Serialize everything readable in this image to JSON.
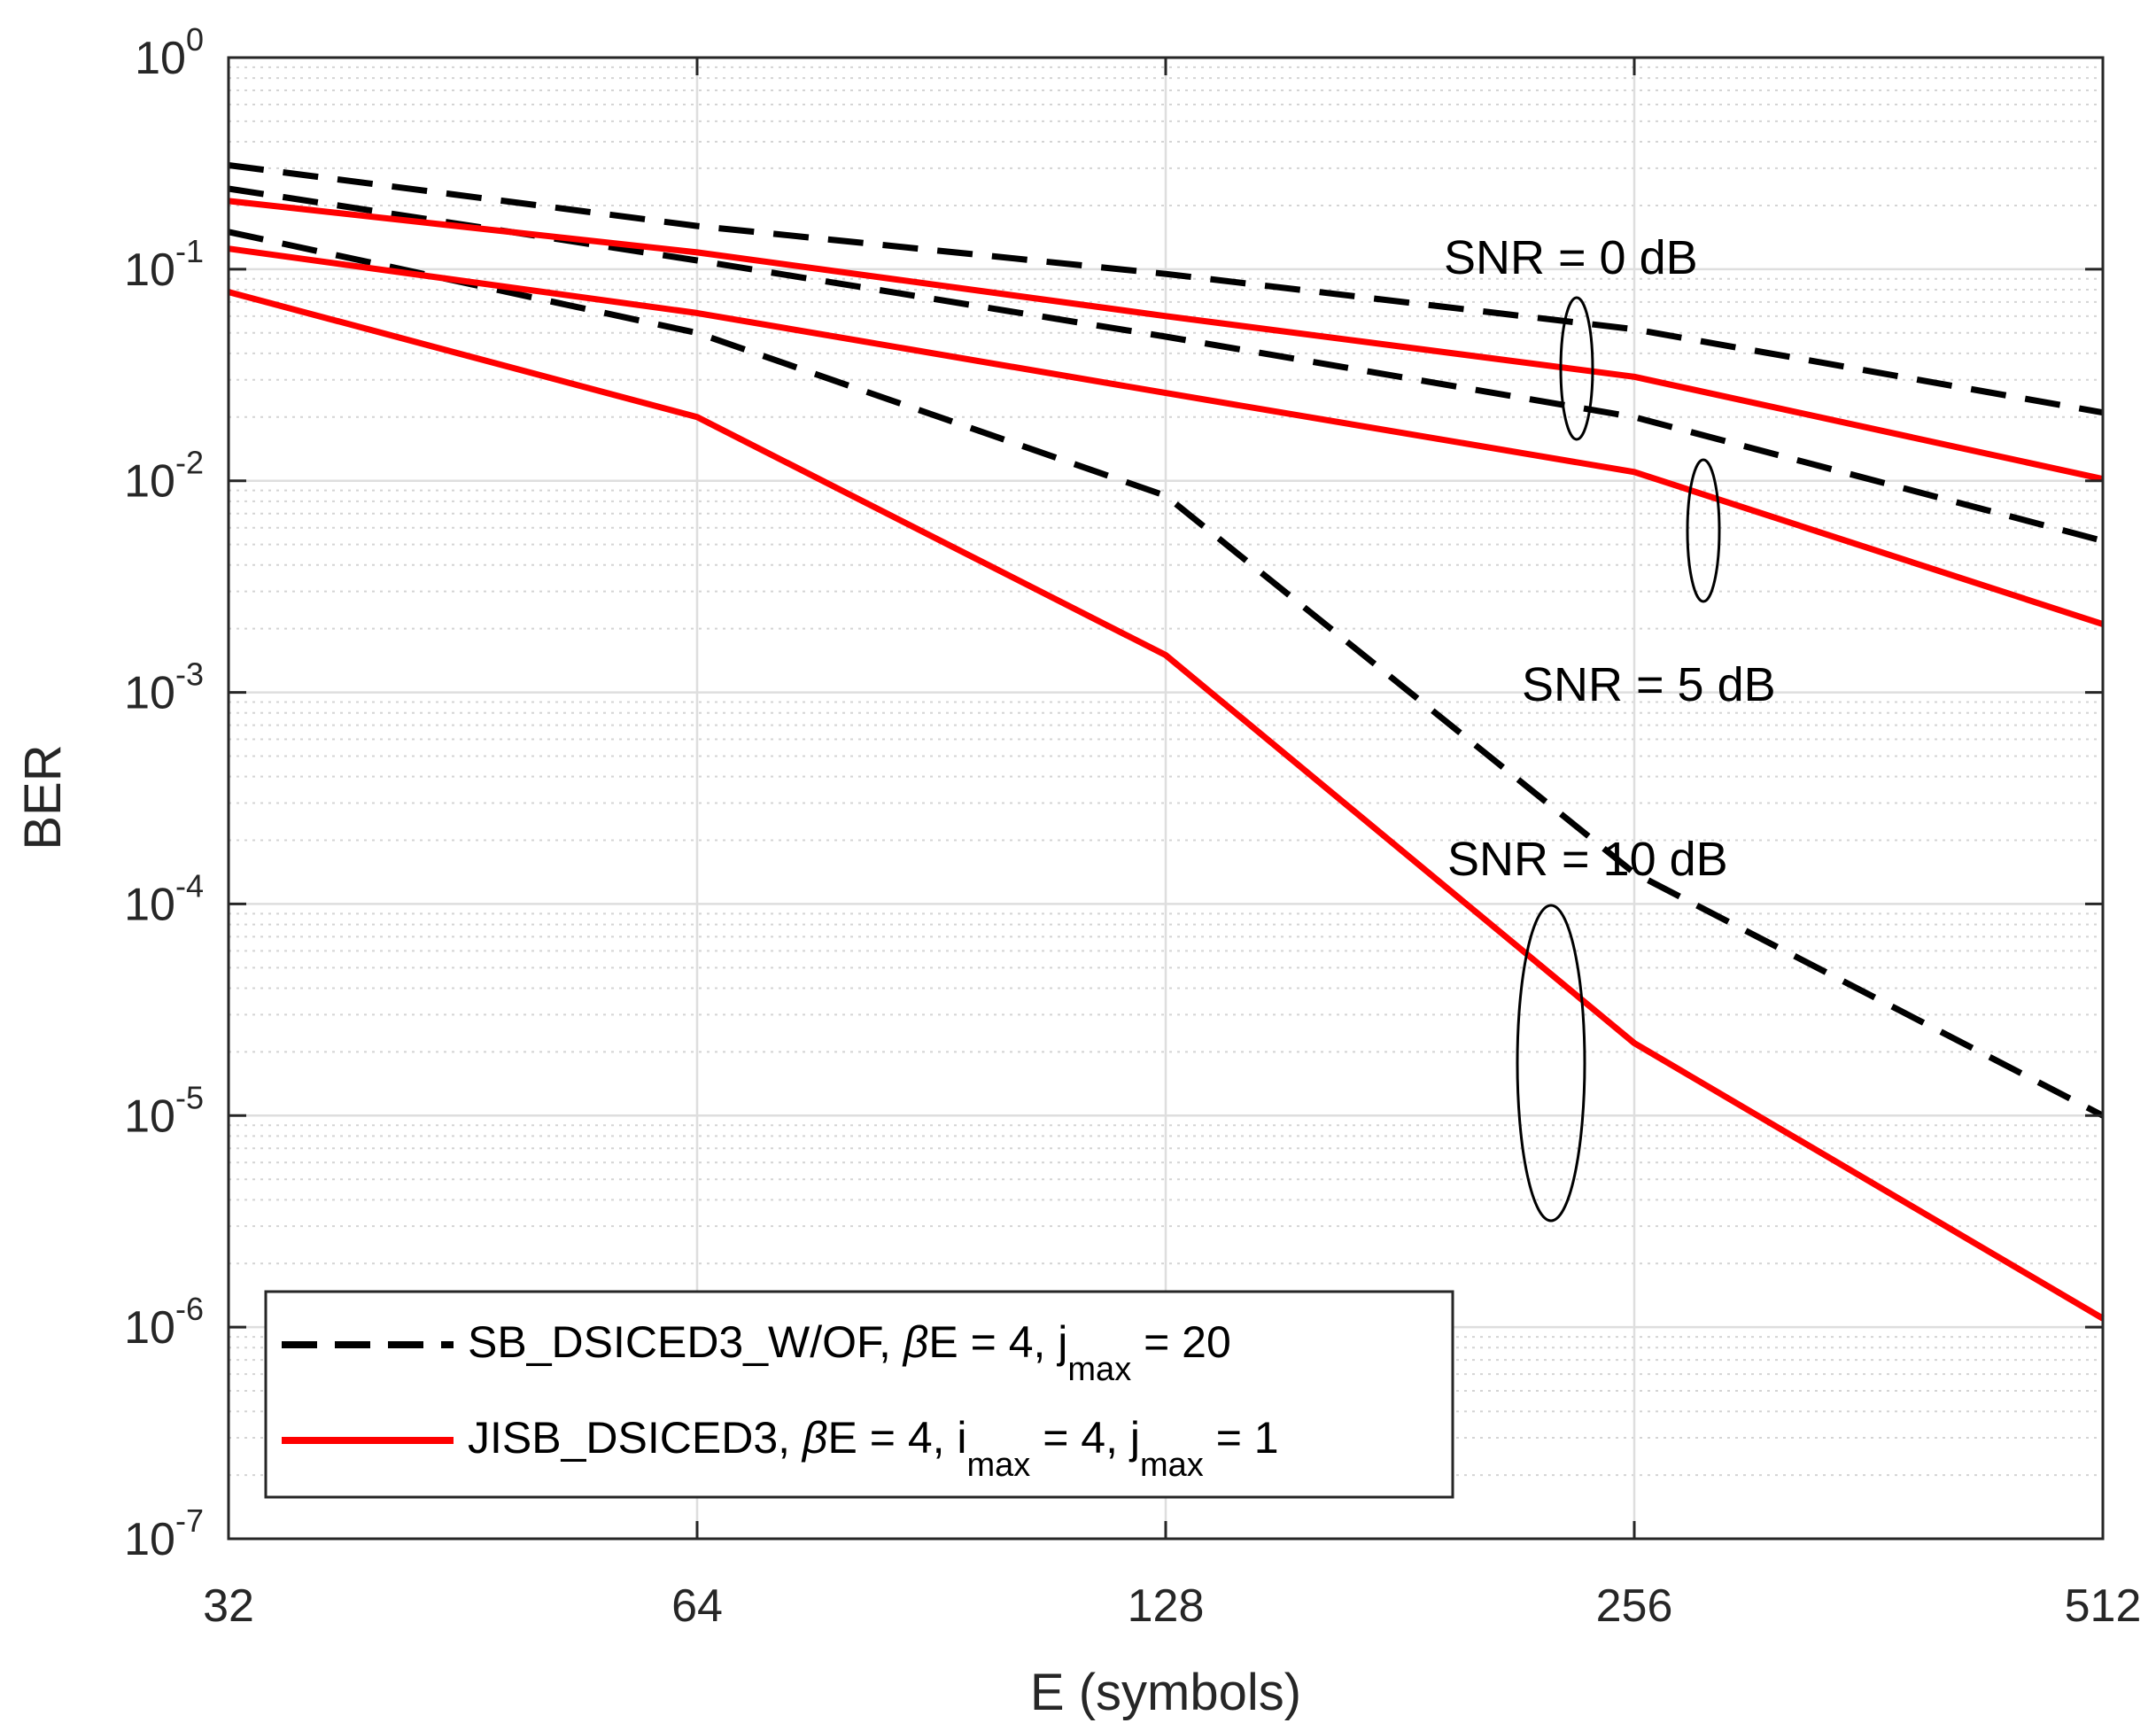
{
  "chart_data": {
    "type": "line",
    "xlabel": "E (symbols)",
    "ylabel": "BER",
    "x_scale": "log2",
    "y_scale": "log10",
    "xlim": [
      32,
      512
    ],
    "ylim": [
      1e-07,
      1
    ],
    "x_ticks": [
      32,
      64,
      128,
      256,
      512
    ],
    "x_tick_labels": [
      "32",
      "64",
      "128",
      "256",
      "512"
    ],
    "y_ticks": [
      {
        "value": 1.0,
        "base": "10",
        "exp": "0"
      },
      {
        "value": 0.1,
        "base": "10",
        "exp": "-1"
      },
      {
        "value": 0.01,
        "base": "10",
        "exp": "-2"
      },
      {
        "value": 0.001,
        "base": "10",
        "exp": "-3"
      },
      {
        "value": 0.0001,
        "base": "10",
        "exp": "-4"
      },
      {
        "value": 1e-05,
        "base": "10",
        "exp": "-5"
      },
      {
        "value": 1e-06,
        "base": "10",
        "exp": "-6"
      },
      {
        "value": 1e-07,
        "base": "10",
        "exp": "-7"
      }
    ],
    "grid": true,
    "minor_grid": true,
    "x": [
      32,
      64,
      128,
      256,
      512
    ],
    "series": [
      {
        "name": "SB_DSICED3_W/OF, SNR = 0 dB",
        "style": "dashed",
        "color": "#000000",
        "values": [
          0.31,
          0.16,
          0.095,
          0.052,
          0.021
        ]
      },
      {
        "name": "SB_DSICED3_W/OF, SNR = 5 dB",
        "style": "dashed",
        "color": "#000000",
        "values": [
          0.24,
          0.11,
          0.048,
          0.02,
          0.0052
        ]
      },
      {
        "name": "SB_DSICED3_W/OF, SNR = 10 dB",
        "style": "dashed",
        "color": "#000000",
        "values": [
          0.15,
          0.05,
          0.0085,
          0.00014,
          1e-05
        ]
      },
      {
        "name": "JISB_DSICED3, SNR = 0 dB",
        "style": "solid",
        "color": "#ff0000",
        "values": [
          0.21,
          0.12,
          0.06,
          0.031,
          0.0102
        ]
      },
      {
        "name": "JISB_DSICED3, SNR = 5 dB",
        "style": "solid",
        "color": "#ff0000",
        "values": [
          0.125,
          0.062,
          0.026,
          0.011,
          0.0021
        ]
      },
      {
        "name": "JISB_DSICED3, SNR = 10 dB",
        "style": "solid",
        "color": "#ff0000",
        "values": [
          0.078,
          0.02,
          0.0015,
          2.2e-05,
          1.1e-06
        ]
      }
    ],
    "annotations": [
      {
        "text": "SNR = 0 dB"
      },
      {
        "text": "SNR = 5 dB"
      },
      {
        "text": "SNR = 10 dB"
      }
    ],
    "legend": {
      "placement": "bottom-left",
      "entries": [
        {
          "style": "dashed",
          "color": "#000000",
          "prefix": "SB_DSICED3_W/OF, ",
          "beta": "β",
          "mid1": "E = 4, j",
          "sub1": "max",
          "tail1": " = 20",
          "mid2": "",
          "sub2": "",
          "tail2": ""
        },
        {
          "style": "solid",
          "color": "#ff0000",
          "prefix": "JISB_DSICED3, ",
          "beta": "β",
          "mid1": "E = 4, i",
          "sub1": "max",
          "tail1": " = 4, j",
          "mid2": "",
          "sub2": "max",
          "tail2": " = 1"
        }
      ]
    }
  }
}
